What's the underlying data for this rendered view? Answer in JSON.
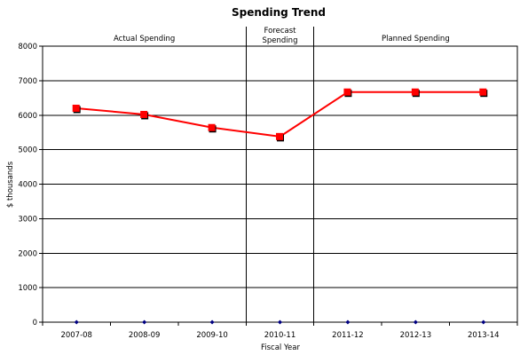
{
  "chart_data": {
    "type": "line",
    "title": "Spending Trend",
    "xlabel": "Fiscal Year",
    "ylabel": "$ thousands",
    "ylim": [
      0,
      8000
    ],
    "yticks": [
      0,
      1000,
      2000,
      3000,
      4000,
      5000,
      6000,
      7000,
      8000
    ],
    "grid": true,
    "categories": [
      "2007-08",
      "2008-09",
      "2009-10",
      "2010-11",
      "2011-12",
      "2012-13",
      "2013-14"
    ],
    "series": [
      {
        "name": "",
        "color": "#ff0000",
        "marker": "square",
        "values": [
          6200,
          6020,
          5640,
          5380,
          6670,
          6670,
          6670
        ]
      },
      {
        "name": "",
        "color": "#000080",
        "marker": "diamond",
        "line": false,
        "values": [
          0,
          0,
          0,
          0,
          0,
          0,
          0
        ]
      }
    ],
    "regions": [
      {
        "label": "Actual Spending",
        "from": 0,
        "to": 2
      },
      {
        "label": "Forecast Spending",
        "lines": [
          "Forecast",
          "Spending"
        ],
        "from": 3,
        "to": 3
      },
      {
        "label": "Planned Spending",
        "from": 4,
        "to": 6
      }
    ]
  }
}
